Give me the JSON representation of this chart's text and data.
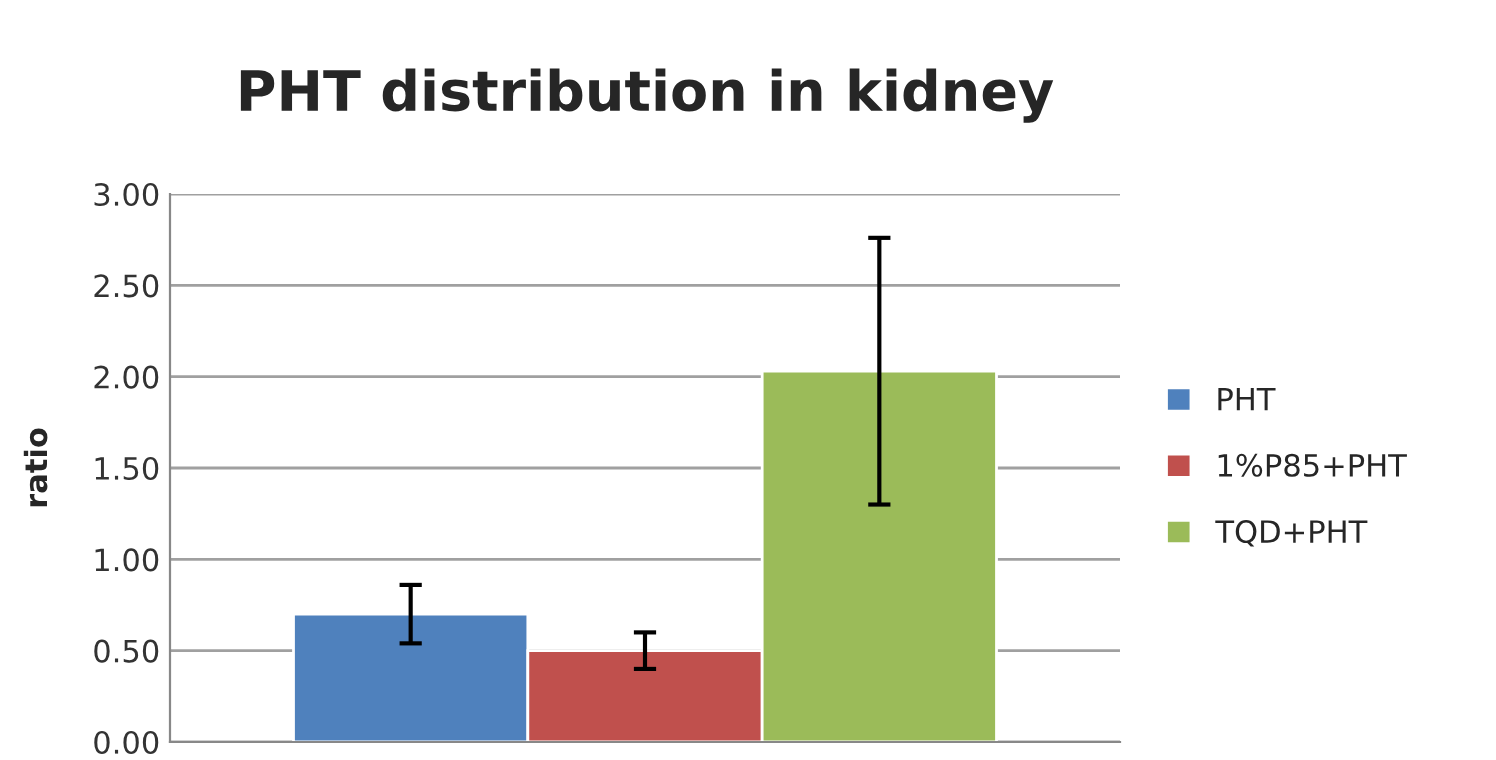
{
  "chart_data": {
    "type": "bar",
    "title": "PHT distribution in kidney",
    "ylabel": "ratio",
    "categories": [
      null
    ],
    "series": [
      {
        "name": "PHT",
        "color": "#4f81bd",
        "values": [
          0.7
        ],
        "errors": [
          0.16
        ]
      },
      {
        "name": "1%P85+PHT",
        "color": "#c0504d",
        "values": [
          0.5
        ],
        "errors": [
          0.1
        ]
      },
      {
        "name": "TQD+PHT",
        "color": "#9bbb59",
        "values": [
          2.03
        ],
        "errors": [
          0.73
        ]
      }
    ],
    "ylim": [
      0,
      3
    ],
    "yticks": [
      {
        "value": 0,
        "label": "0.00"
      },
      {
        "value": 0.5,
        "label": "0.50"
      },
      {
        "value": 1,
        "label": "1.00"
      },
      {
        "value": 1.5,
        "label": "1.50"
      },
      {
        "value": 2,
        "label": "2.00"
      },
      {
        "value": 2.5,
        "label": "2.50"
      },
      {
        "value": 3,
        "label": "3.00"
      }
    ],
    "grid": "y",
    "legend": "right"
  }
}
